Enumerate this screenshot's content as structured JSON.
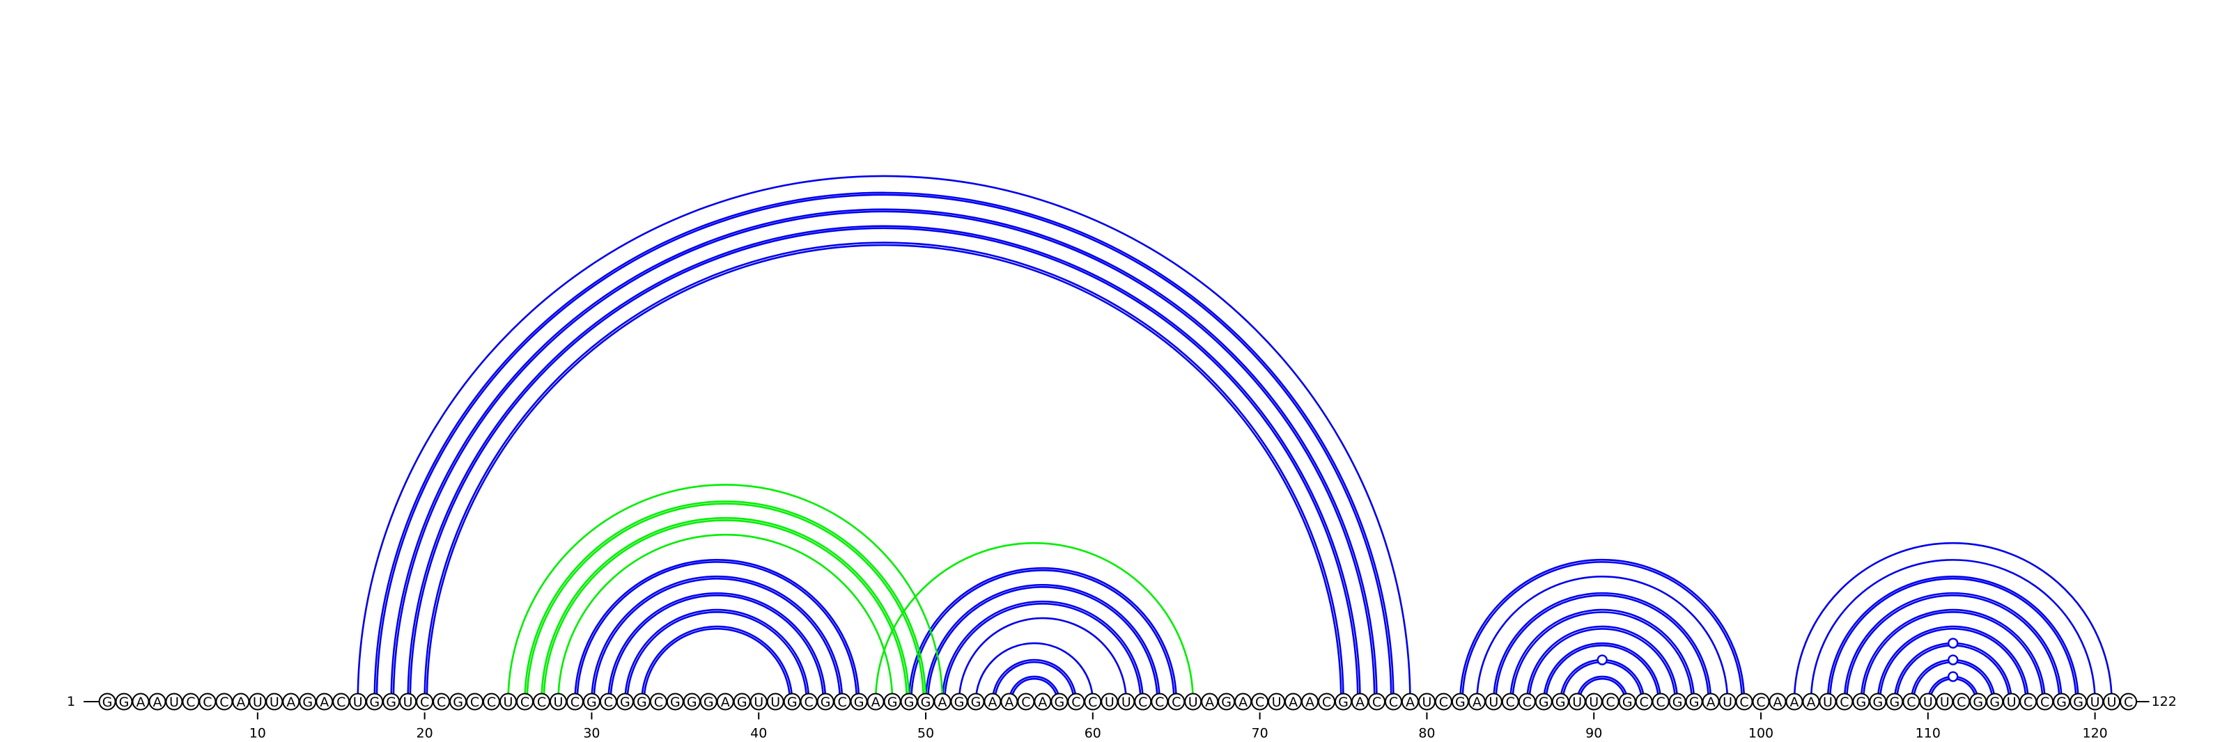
{
  "sequence": "GGAAUCCCAUUAGACUGGUCCGCCUCCUCGCGGCGGGAGUUGCGCGAGGGAGGAACAGCCUUCCCUAGACUAACGACCAUCGAUCCGGUUCGCCGGAUCCAAAUCGGGCUUCGGUCCGGUUC",
  "labels": {
    "start_label": "1",
    "end_label": "122"
  },
  "position_ticks": [
    {
      "pos": 10,
      "label": "10"
    },
    {
      "pos": 20,
      "label": "20"
    },
    {
      "pos": 30,
      "label": "30"
    },
    {
      "pos": 40,
      "label": "40"
    },
    {
      "pos": 50,
      "label": "50"
    },
    {
      "pos": 60,
      "label": "60"
    },
    {
      "pos": 70,
      "label": "70"
    },
    {
      "pos": 80,
      "label": "80"
    },
    {
      "pos": 90,
      "label": "90"
    },
    {
      "pos": 100,
      "label": "100"
    },
    {
      "pos": 110,
      "label": "110"
    },
    {
      "pos": 120,
      "label": "120"
    }
  ],
  "colors": {
    "primary_structure": "#0000ee",
    "alternate_structure": "#00ee00"
  },
  "pairs": [
    {
      "i": 16,
      "j": 79,
      "set": "primary"
    },
    {
      "i": 17,
      "j": 78,
      "set": "primary",
      "double": true
    },
    {
      "i": 18,
      "j": 77,
      "set": "primary",
      "double": true
    },
    {
      "i": 19,
      "j": 76,
      "set": "primary",
      "double": true
    },
    {
      "i": 20,
      "j": 75,
      "set": "primary",
      "double": true
    },
    {
      "i": 29,
      "j": 46,
      "set": "primary",
      "double": true
    },
    {
      "i": 30,
      "j": 45,
      "set": "primary",
      "double": true
    },
    {
      "i": 31,
      "j": 44,
      "set": "primary",
      "double": true
    },
    {
      "i": 32,
      "j": 43,
      "set": "primary",
      "double": true
    },
    {
      "i": 33,
      "j": 42,
      "set": "primary",
      "double": true
    },
    {
      "i": 49,
      "j": 65,
      "set": "primary",
      "double": true
    },
    {
      "i": 50,
      "j": 64,
      "set": "primary",
      "double": true
    },
    {
      "i": 51,
      "j": 63,
      "set": "primary",
      "double": true
    },
    {
      "i": 52,
      "j": 62,
      "set": "primary"
    },
    {
      "i": 53,
      "j": 60,
      "set": "primary"
    },
    {
      "i": 54,
      "j": 59,
      "set": "primary",
      "double": true
    },
    {
      "i": 55,
      "j": 58,
      "set": "primary",
      "double": true
    },
    {
      "i": 82,
      "j": 99,
      "set": "primary",
      "double": true
    },
    {
      "i": 83,
      "j": 98,
      "set": "primary"
    },
    {
      "i": 84,
      "j": 97,
      "set": "primary",
      "double": true
    },
    {
      "i": 85,
      "j": 96,
      "set": "primary",
      "double": true
    },
    {
      "i": 86,
      "j": 95,
      "set": "primary",
      "double": true
    },
    {
      "i": 87,
      "j": 94,
      "set": "primary",
      "double": true
    },
    {
      "i": 88,
      "j": 93,
      "set": "primary",
      "double": true
    },
    {
      "i": 89,
      "j": 92,
      "set": "primary",
      "double": true
    },
    {
      "i": 102,
      "j": 121,
      "set": "primary"
    },
    {
      "i": 103,
      "j": 120,
      "set": "primary"
    },
    {
      "i": 104,
      "j": 119,
      "set": "primary",
      "double": true
    },
    {
      "i": 105,
      "j": 118,
      "set": "primary",
      "double": true
    },
    {
      "i": 106,
      "j": 117,
      "set": "primary",
      "double": true
    },
    {
      "i": 107,
      "j": 116,
      "set": "primary",
      "double": true
    },
    {
      "i": 108,
      "j": 115,
      "set": "primary",
      "double": true
    },
    {
      "i": 109,
      "j": 114,
      "set": "primary",
      "double": true
    },
    {
      "i": 110,
      "j": 113,
      "set": "primary",
      "double": true
    },
    {
      "i": 25,
      "j": 51,
      "set": "alternate"
    },
    {
      "i": 26,
      "j": 50,
      "set": "alternate",
      "double": true
    },
    {
      "i": 27,
      "j": 49,
      "set": "alternate",
      "double": true
    },
    {
      "i": 28,
      "j": 48,
      "set": "alternate"
    },
    {
      "i": 47,
      "j": 66,
      "set": "alternate"
    }
  ],
  "arc_markers": [
    {
      "i": 88,
      "j": 93,
      "kind": "circle"
    },
    {
      "i": 108,
      "j": 115,
      "kind": "circle"
    },
    {
      "i": 109,
      "j": 114,
      "kind": "circle"
    },
    {
      "i": 110,
      "j": 113,
      "kind": "circle"
    }
  ]
}
